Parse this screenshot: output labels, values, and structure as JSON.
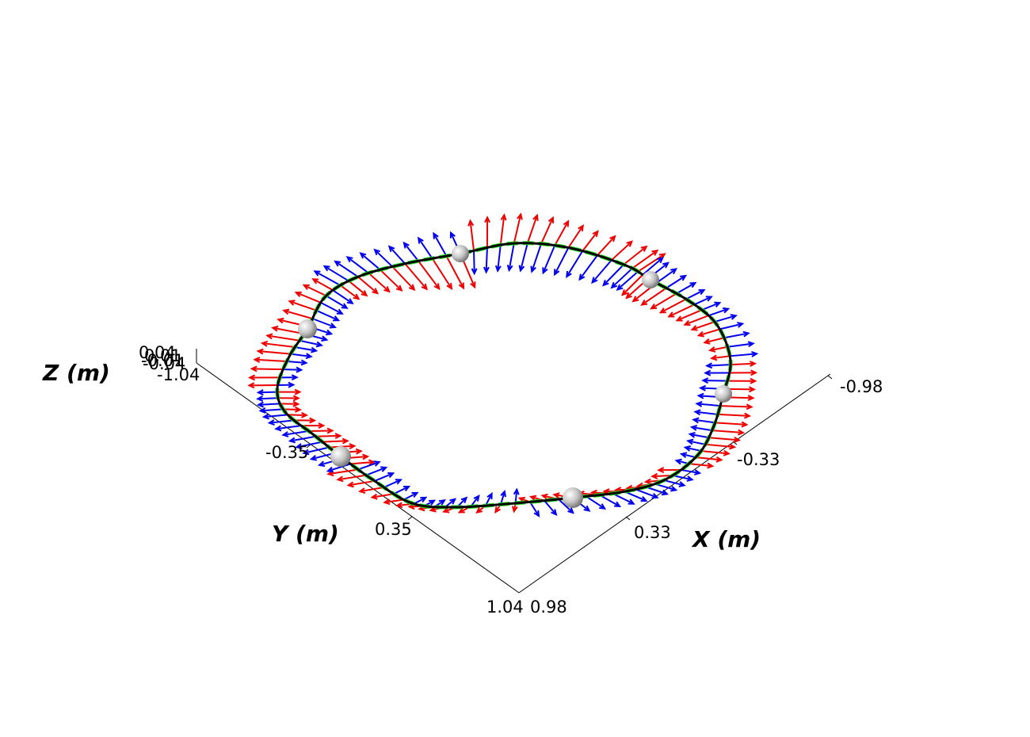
{
  "chart_data": {
    "type": "3d-line-with-vectors",
    "axes": {
      "x": {
        "label": "X (m)",
        "ticks": [
          "-0.98",
          "-0.33",
          "0.33",
          "0.98"
        ]
      },
      "y": {
        "label": "Y (m)",
        "ticks": [
          "1.04",
          "0.35",
          "-0.35"
        ]
      },
      "z": {
        "label": "Z (m)",
        "ticks": [
          "0.04",
          "0.01",
          "-0.01",
          "-0.04",
          "-1.04"
        ]
      }
    },
    "series": [
      {
        "role": "reference-path",
        "color": "#22dd22",
        "style": "dashed"
      },
      {
        "role": "actual-path",
        "color": "#000000",
        "style": "solid"
      },
      {
        "role": "normal-vectors",
        "color": "#ee0000"
      },
      {
        "role": "tangent-vectors",
        "color": "#0000ee"
      },
      {
        "role": "waypoints",
        "color": "#bbbbbb",
        "count": 6
      }
    ],
    "grid": false
  }
}
